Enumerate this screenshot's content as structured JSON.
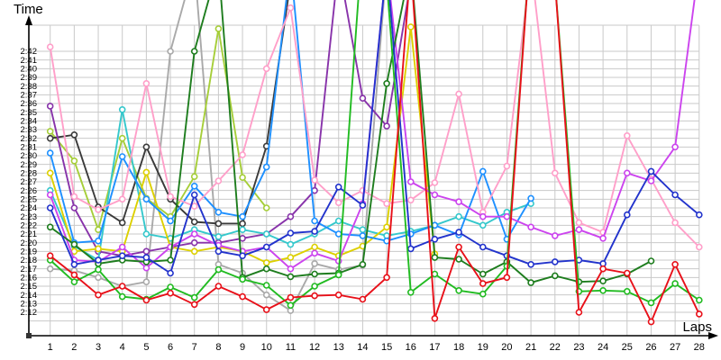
{
  "chart_data": {
    "type": "line",
    "title": "Time",
    "xlabel": "Laps",
    "x": [
      1,
      2,
      3,
      4,
      5,
      6,
      7,
      8,
      9,
      10,
      11,
      12,
      13,
      14,
      15,
      16,
      17,
      18,
      19,
      20,
      21,
      22,
      23,
      24,
      25,
      26,
      27,
      28
    ],
    "x_ticks": [
      "1",
      "2",
      "3",
      "4",
      "5",
      "6",
      "7",
      "8",
      "9",
      "10",
      "11",
      "12",
      "13",
      "14",
      "15",
      "16",
      "17",
      "18",
      "19",
      "20",
      "21",
      "22",
      "23",
      "24",
      "25",
      "26",
      "27",
      "28"
    ],
    "y_ticks": [
      "2:12",
      "2:13",
      "2:14",
      "2:15",
      "2:16",
      "2:17",
      "2:18",
      "2:19",
      "2:20",
      "2:21",
      "2:22",
      "2:23",
      "2:24",
      "2:25",
      "2:26",
      "2:27",
      "2:28",
      "2:29",
      "2:30",
      "2:31",
      "2:32",
      "2:33",
      "2:34",
      "2:35",
      "2:36",
      "2:37",
      "2:38",
      "2:39",
      "2:40",
      "2:41",
      "2:42"
    ],
    "y_unit": "minutes:seconds",
    "ylim_seconds": [
      132,
      162
    ],
    "grid": true,
    "legend": "none",
    "note": "values are lap times in seconds; values >165 are pit/out laps clipped above chart top; null = no data (car not running)",
    "series": [
      {
        "name": "gray",
        "color": "#A9A9A9",
        "values": [
          137,
          136.8,
          136,
          135,
          135.5,
          162,
          172,
          137.5,
          136.5,
          134,
          132.2,
          137.6,
          136.9,
          137.4,
          172,
          null,
          null,
          null,
          null,
          null,
          null,
          null,
          null,
          null,
          null,
          null,
          null,
          null
        ]
      },
      {
        "name": "yellow-green",
        "color": "#A6CE39",
        "values": [
          152.8,
          149.4,
          141.5,
          152,
          145.1,
          143,
          147.6,
          164.6,
          147.5,
          144,
          null,
          null,
          null,
          null,
          null,
          null,
          null,
          null,
          null,
          null,
          null,
          null,
          null,
          null,
          null,
          null,
          null,
          null
        ]
      },
      {
        "name": "black",
        "color": "#3A3A3A",
        "values": [
          152,
          152.4,
          144.1,
          142.3,
          151,
          145,
          142.4,
          142.2,
          142.2,
          151.1,
          170,
          null,
          null,
          null,
          null,
          null,
          null,
          null,
          null,
          null,
          null,
          null,
          null,
          null,
          null,
          null,
          null,
          null
        ]
      },
      {
        "name": "dark-purple",
        "color": "#8833AA",
        "values": [
          155.7,
          144,
          139,
          138.5,
          139,
          139.5,
          140,
          140,
          140.5,
          141,
          143,
          146,
          172,
          156.6,
          153.4,
          170,
          null,
          null,
          null,
          null,
          null,
          null,
          null,
          null,
          null,
          null,
          null,
          null
        ]
      },
      {
        "name": "cyan",
        "color": "#35C8CC",
        "values": [
          146,
          139.6,
          138,
          155.3,
          141,
          140.5,
          141.5,
          140.7,
          141.5,
          141,
          139.8,
          141,
          142.5,
          141.5,
          140.8,
          141.3,
          142,
          143,
          142,
          143.5,
          144.5,
          null,
          null,
          null,
          null,
          null,
          null,
          null
        ]
      },
      {
        "name": "yellow",
        "color": "#DDD000",
        "values": [
          148,
          139,
          139.3,
          139,
          148.1,
          139.5,
          139,
          139.5,
          139,
          137.7,
          138.3,
          139.5,
          138.5,
          139.6,
          141.8,
          164.8,
          138.7,
          null,
          null,
          null,
          null,
          null,
          null,
          null,
          null,
          null,
          null,
          null
        ]
      },
      {
        "name": "light-blue",
        "color": "#1E90FF",
        "values": [
          150.3,
          140,
          140.2,
          149.9,
          145,
          142.5,
          146.5,
          143.5,
          143,
          148.7,
          172,
          142.5,
          141,
          140.8,
          140.2,
          141,
          142,
          140.9,
          148.2,
          140.4,
          145.1,
          null,
          null,
          null,
          null,
          null,
          null,
          null
        ]
      },
      {
        "name": "pink",
        "color": "#FF9FC9",
        "values": [
          162.5,
          145.3,
          143.8,
          145,
          158.3,
          145.3,
          144.2,
          147.1,
          150.1,
          160,
          167,
          147.2,
          144.6,
          146,
          144.5,
          144.9,
          146.9,
          157.1,
          143.5,
          148.8,
          172,
          148,
          142.3,
          141.2,
          152.3,
          147.3,
          142.3,
          139.5
        ]
      },
      {
        "name": "violet",
        "color": "#CC44EE",
        "values": [
          145.5,
          138,
          137.8,
          139.5,
          137.1,
          139.5,
          141,
          139.7,
          139,
          139.5,
          137,
          138.8,
          137.9,
          144.5,
          172,
          147,
          145.5,
          144.7,
          143,
          143,
          141.8,
          140.8,
          141.5,
          140.5,
          148,
          147.1,
          151,
          172
        ]
      },
      {
        "name": "dark-green",
        "color": "#1E7D1E",
        "values": [
          141.8,
          139.8,
          137.6,
          138,
          137.8,
          138,
          162,
          172,
          136,
          137,
          136.1,
          136.4,
          136.5,
          137.5,
          158.3,
          172,
          138.3,
          138.1,
          136.4,
          137.8,
          135.4,
          136.2,
          135.5,
          135.6,
          136.4,
          137.9,
          null,
          null
        ]
      },
      {
        "name": "blue",
        "color": "#2233CC",
        "values": [
          144,
          137.5,
          138,
          138.5,
          138.3,
          136.5,
          145.5,
          139,
          138.5,
          139.5,
          141.1,
          141.3,
          146.4,
          144.3,
          172,
          139.3,
          140.4,
          141.2,
          139.5,
          138.5,
          137.5,
          137.8,
          138,
          137.6,
          143.2,
          148.2,
          145.5,
          143.2
        ]
      },
      {
        "name": "green",
        "color": "#21BB21",
        "values": [
          138,
          135.5,
          136.9,
          133.8,
          133.5,
          134.9,
          133.7,
          136.9,
          135.8,
          135.1,
          132.8,
          135,
          136.3,
          175,
          170,
          134.3,
          136.4,
          134.5,
          134.1,
          137.3,
          175,
          170,
          134.4,
          134.5,
          134.4,
          133.1,
          135.3,
          133.4
        ]
      },
      {
        "name": "red",
        "color": "#E81019",
        "values": [
          138.5,
          136.3,
          134,
          135,
          133.4,
          134.2,
          132.9,
          135,
          133.8,
          132.3,
          133.7,
          133.9,
          134,
          133.5,
          136,
          172,
          131.3,
          139.5,
          135.3,
          136,
          175,
          170,
          132,
          137,
          136.5,
          130.9,
          137.5,
          131.8
        ]
      }
    ]
  }
}
